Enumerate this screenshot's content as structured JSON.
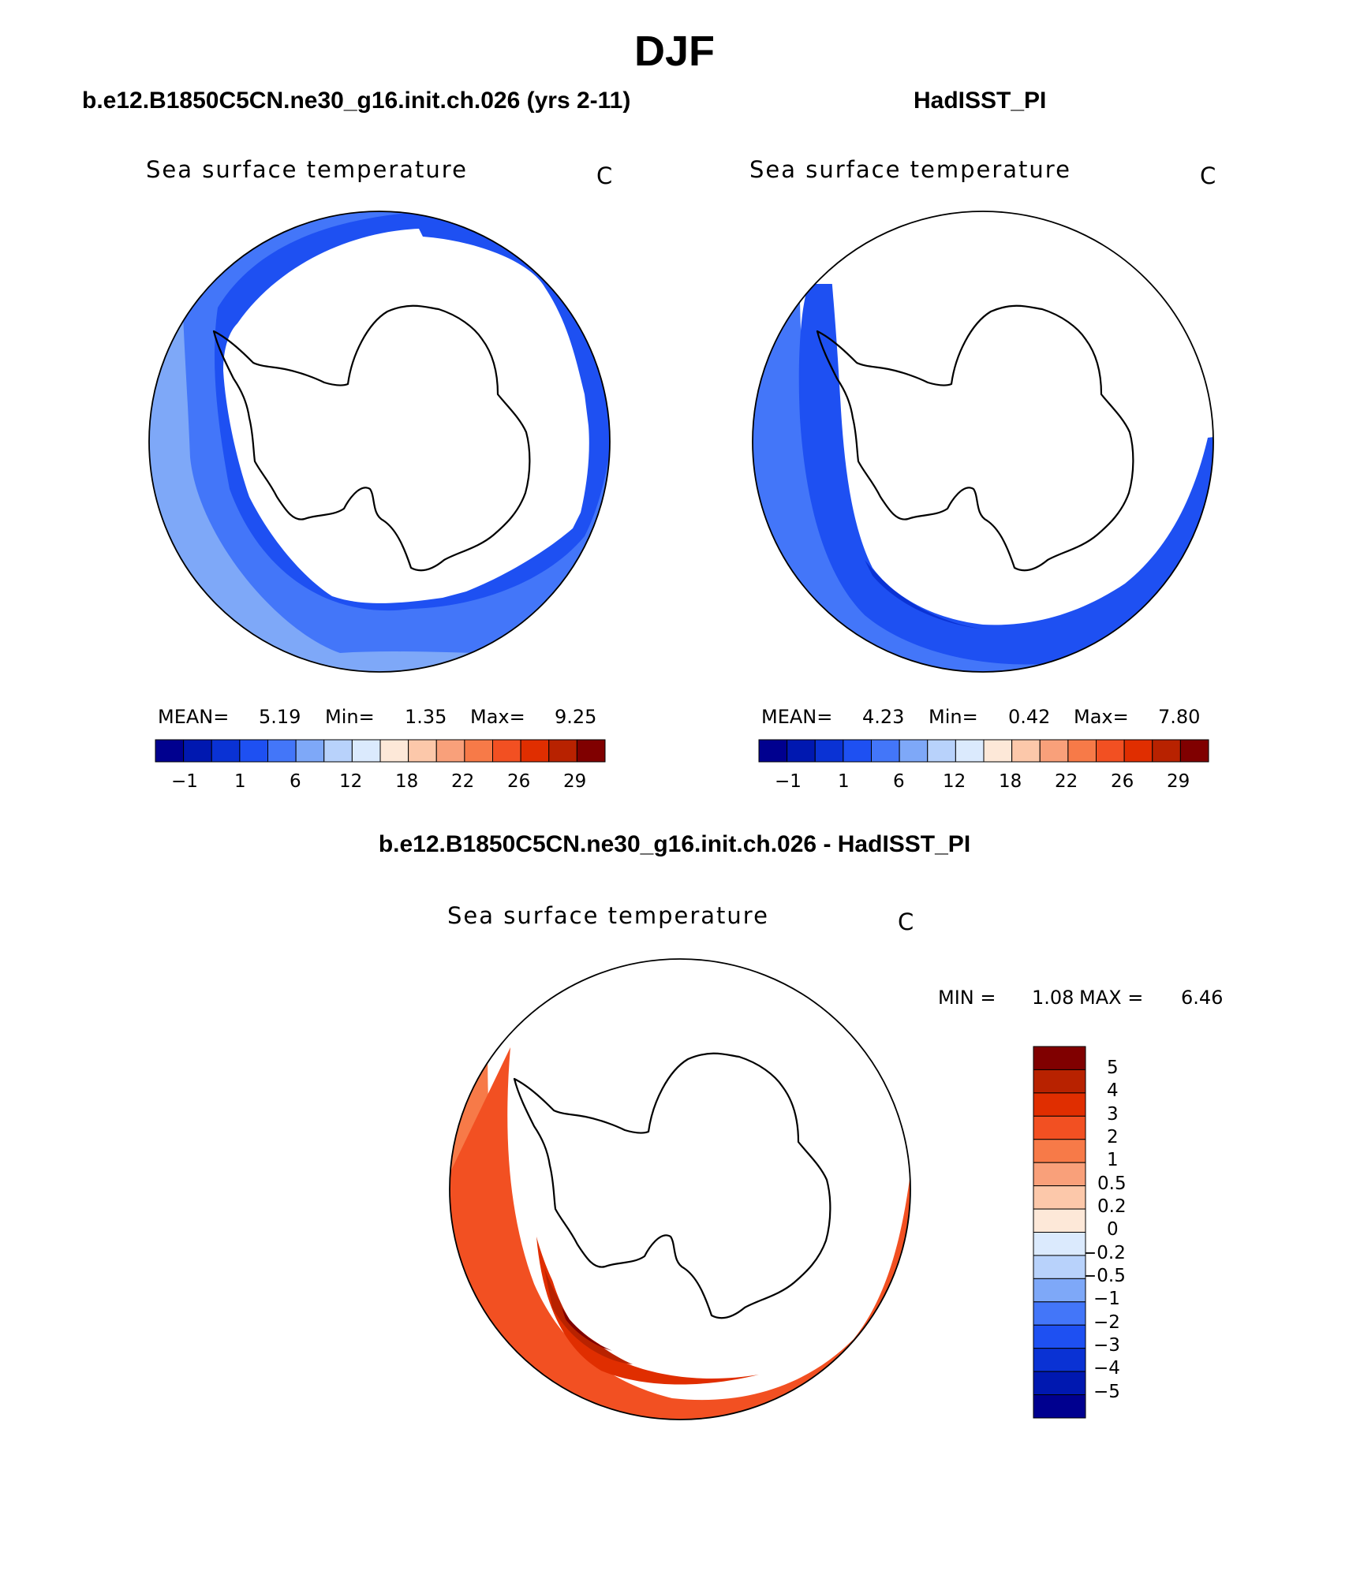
{
  "figure_title": "DJF",
  "panels": [
    {
      "id": "model",
      "title": "b.e12.B1850C5CN.ne30_g16.init.ch.026 (yrs 2-11)",
      "label": "Sea surface temperature",
      "units": "C",
      "stats": {
        "mean_label": "MEAN=",
        "mean": "5.19",
        "min_label": "Min=",
        "min": "1.35",
        "max_label": "Max=",
        "max": "9.25"
      },
      "colorbar_ticks": [
        "−1",
        "1",
        "6",
        "12",
        "18",
        "22",
        "26",
        "29"
      ]
    },
    {
      "id": "obs",
      "title": "HadISST_PI",
      "label": "Sea surface temperature",
      "units": "C",
      "stats": {
        "mean_label": "MEAN=",
        "mean": "4.23",
        "min_label": "Min=",
        "min": "0.42",
        "max_label": "Max=",
        "max": "7.80"
      },
      "colorbar_ticks": [
        "−1",
        "1",
        "6",
        "12",
        "18",
        "22",
        "26",
        "29"
      ]
    },
    {
      "id": "diff",
      "title": "b.e12.B1850C5CN.ne30_g16.init.ch.026 - HadISST_PI",
      "label": "Sea surface temperature",
      "units": "C",
      "stats": {
        "min_label": "MIN =",
        "min": "1.08",
        "max_label": "MAX =",
        "max": "6.46"
      },
      "colorbar_ticks": [
        "5",
        "4",
        "3",
        "2",
        "1",
        "0.5",
        "0.2",
        "0",
        "−0.2",
        "−0.5",
        "−1",
        "−2",
        "−3",
        "−4",
        "−5"
      ]
    }
  ],
  "colors": {
    "sst_scale": [
      "#00008f",
      "#0018b0",
      "#0a32d4",
      "#1e50f2",
      "#4376f9",
      "#7ea8f8",
      "#b8d2fb",
      "#dbeafd",
      "#fde8d8",
      "#fcc8aa",
      "#f9a07a",
      "#f77a48",
      "#f25022",
      "#e02e00",
      "#b82200",
      "#800000"
    ],
    "diff_scale": [
      "#800000",
      "#b82200",
      "#e02e00",
      "#f25022",
      "#f77a48",
      "#f9a07a",
      "#fcc8aa",
      "#fde8d8",
      "#dbeafd",
      "#b8d2fb",
      "#7ea8f8",
      "#4376f9",
      "#1e50f2",
      "#0a32d4",
      "#0018b0",
      "#00008f"
    ]
  },
  "chart_data": [
    {
      "type": "heatmap",
      "projection": "south polar stereographic",
      "title": "b.e12.B1850C5CN.ne30_g16.init.ch.026 (yrs 2-11)",
      "variable": "Sea surface temperature",
      "units": "C",
      "mean": 5.19,
      "min": 1.35,
      "max": 9.25,
      "contour_levels": [
        -1,
        0,
        1,
        3,
        6,
        9,
        12,
        15,
        18,
        20,
        22,
        24,
        26,
        28,
        29
      ],
      "fill_bands_shown": [
        {
          "band": "1 to 3",
          "location": "inner ring near sea-ice edge"
        },
        {
          "band": "3 to 6",
          "location": "middle ring"
        },
        {
          "band": "6 to 9",
          "location": "outer ring, widest in Pacific sector"
        }
      ]
    },
    {
      "type": "heatmap",
      "projection": "south polar stereographic",
      "title": "HadISST_PI",
      "variable": "Sea surface temperature",
      "units": "C",
      "mean": 4.23,
      "min": 0.42,
      "max": 7.8,
      "contour_levels": [
        -1,
        0,
        1,
        3,
        6,
        9,
        12,
        15,
        18,
        20,
        22,
        24,
        26,
        28,
        29
      ],
      "fill_bands_shown": [
        {
          "band": "0 to 1",
          "location": "thin strip south of Pacific sector"
        },
        {
          "band": "1 to 3",
          "location": "inner band"
        },
        {
          "band": "3 to 6",
          "location": "outer band, Pacific sector"
        }
      ]
    },
    {
      "type": "heatmap",
      "projection": "south polar stereographic",
      "title": "b.e12.B1850C5CN.ne30_g16.init.ch.026 - HadISST_PI",
      "variable": "Sea surface temperature",
      "units": "C",
      "min": 1.08,
      "max": 6.46,
      "contour_levels": [
        -5,
        -4,
        -3,
        -2,
        -1,
        -0.5,
        -0.2,
        0,
        0.2,
        0.5,
        1,
        2,
        3,
        4,
        5
      ],
      "fill_bands_shown": [
        {
          "band": "1 to 2",
          "location": "outer Pacific sector"
        },
        {
          "band": "2 to 3",
          "location": "most of the ocean ring"
        },
        {
          "band": "3 to 4",
          "location": "inner band near ice edge"
        },
        {
          "band": "4 to 5",
          "location": "patches near the ice edge"
        },
        {
          "band": "> 5",
          "location": "small patch near the ice edge"
        }
      ]
    }
  ]
}
